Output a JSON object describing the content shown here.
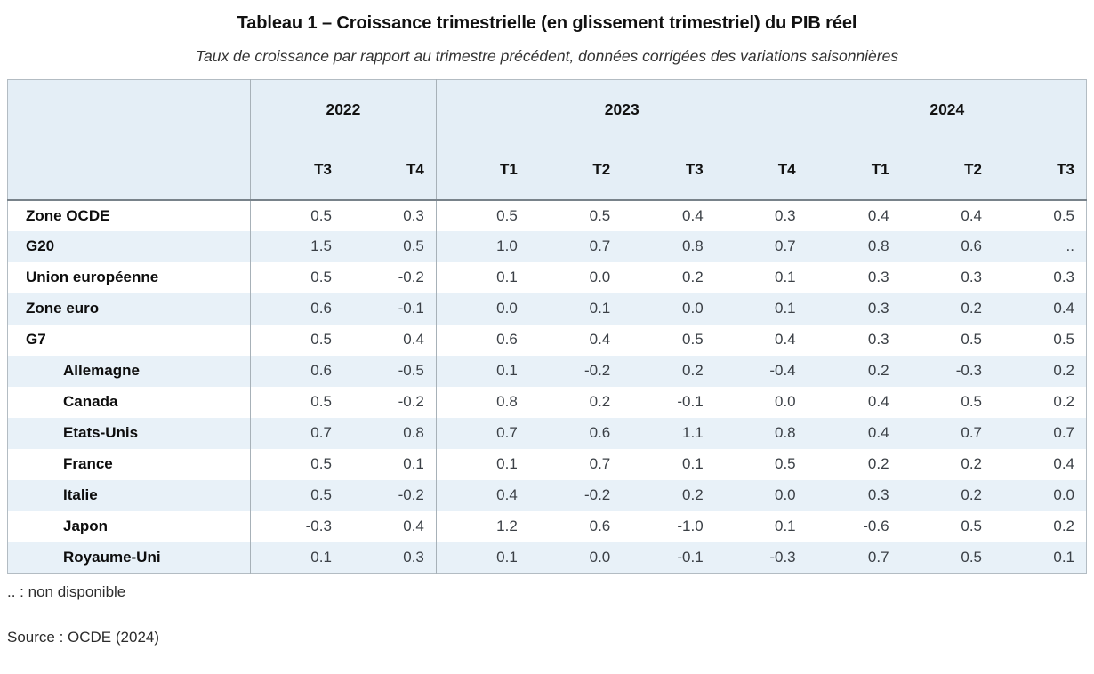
{
  "title": "Tableau 1 – Croissance trimestrielle (en glissement trimestriel) du PIB réel",
  "subtitle": "Taux de croissance par rapport au trimestre précédent, données corrigées des variations saisonnières",
  "footnote": ".. : non disponible",
  "source": "Source : OCDE (2024)",
  "colors": {
    "header_bg": "#e4eef6",
    "alt_row_bg": "#e8f1f8",
    "border": "#b3bcc3",
    "group_separator": "#a7b1b8",
    "header_body_separator": "#78828a",
    "value_text": "#3b4046"
  },
  "table": {
    "year_groups": [
      {
        "label": "2022",
        "quarters": [
          "T3",
          "T4"
        ]
      },
      {
        "label": "2023",
        "quarters": [
          "T1",
          "T2",
          "T3",
          "T4"
        ]
      },
      {
        "label": "2024",
        "quarters": [
          "T1",
          "T2",
          "T3"
        ]
      }
    ],
    "rows": [
      {
        "label": "Zone OCDE",
        "indent": false,
        "values": [
          "0.5",
          "0.3",
          "0.5",
          "0.5",
          "0.4",
          "0.3",
          "0.4",
          "0.4",
          "0.5"
        ]
      },
      {
        "label": "G20",
        "indent": false,
        "values": [
          "1.5",
          "0.5",
          "1.0",
          "0.7",
          "0.8",
          "0.7",
          "0.8",
          "0.6",
          ".."
        ]
      },
      {
        "label": "Union européenne",
        "indent": false,
        "values": [
          "0.5",
          "-0.2",
          "0.1",
          "0.0",
          "0.2",
          "0.1",
          "0.3",
          "0.3",
          "0.3"
        ]
      },
      {
        "label": "Zone euro",
        "indent": false,
        "values": [
          "0.6",
          "-0.1",
          "0.0",
          "0.1",
          "0.0",
          "0.1",
          "0.3",
          "0.2",
          "0.4"
        ]
      },
      {
        "label": "G7",
        "indent": false,
        "values": [
          "0.5",
          "0.4",
          "0.6",
          "0.4",
          "0.5",
          "0.4",
          "0.3",
          "0.5",
          "0.5"
        ]
      },
      {
        "label": "Allemagne",
        "indent": true,
        "values": [
          "0.6",
          "-0.5",
          "0.1",
          "-0.2",
          "0.2",
          "-0.4",
          "0.2",
          "-0.3",
          "0.2"
        ]
      },
      {
        "label": "Canada",
        "indent": true,
        "values": [
          "0.5",
          "-0.2",
          "0.8",
          "0.2",
          "-0.1",
          "0.0",
          "0.4",
          "0.5",
          "0.2"
        ]
      },
      {
        "label": "Etats-Unis",
        "indent": true,
        "values": [
          "0.7",
          "0.8",
          "0.7",
          "0.6",
          "1.1",
          "0.8",
          "0.4",
          "0.7",
          "0.7"
        ]
      },
      {
        "label": "France",
        "indent": true,
        "values": [
          "0.5",
          "0.1",
          "0.1",
          "0.7",
          "0.1",
          "0.5",
          "0.2",
          "0.2",
          "0.4"
        ]
      },
      {
        "label": "Italie",
        "indent": true,
        "values": [
          "0.5",
          "-0.2",
          "0.4",
          "-0.2",
          "0.2",
          "0.0",
          "0.3",
          "0.2",
          "0.0"
        ]
      },
      {
        "label": "Japon",
        "indent": true,
        "values": [
          "-0.3",
          "0.4",
          "1.2",
          "0.6",
          "-1.0",
          "0.1",
          "-0.6",
          "0.5",
          "0.2"
        ]
      },
      {
        "label": "Royaume-Uni",
        "indent": true,
        "values": [
          "0.1",
          "0.3",
          "0.1",
          "0.0",
          "-0.1",
          "-0.3",
          "0.7",
          "0.5",
          "0.1"
        ]
      }
    ]
  }
}
